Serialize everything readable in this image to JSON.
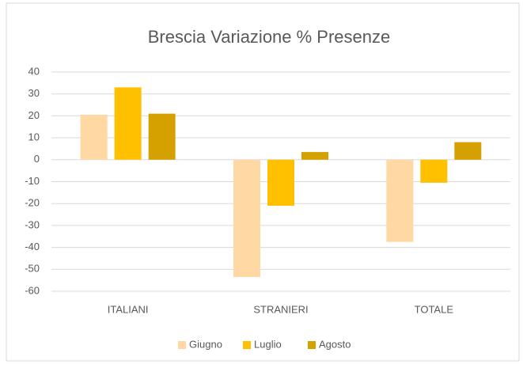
{
  "chart_data": {
    "type": "bar",
    "title": "Brescia Variazione % Presenze",
    "categories": [
      "ITALIANI",
      "STRANIERI",
      "TOTALE"
    ],
    "series": [
      {
        "name": "Giugno",
        "color": "#ffd8a3",
        "values": [
          20.5,
          -53.5,
          -37.5
        ]
      },
      {
        "name": "Luglio",
        "color": "#ffc000",
        "values": [
          33,
          -21,
          -10.5
        ]
      },
      {
        "name": "Agosto",
        "color": "#d4a100",
        "values": [
          21,
          3.5,
          8
        ]
      }
    ],
    "ylim": [
      -60,
      40
    ],
    "yticks": [
      -60,
      -50,
      -40,
      -30,
      -20,
      -10,
      0,
      10,
      20,
      30,
      40
    ],
    "grid": true,
    "legend": "bottom"
  }
}
